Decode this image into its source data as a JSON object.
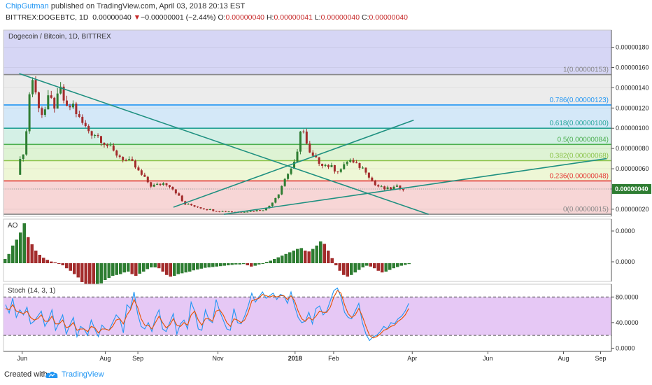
{
  "header": {
    "author": "ChipGutman",
    "published": "published on TradingView.com, April 03, 2018 20:13 EST",
    "symbol": "BITTREX:DOGEBTC, 1D",
    "last": "0.00000040",
    "arrow": "▼",
    "change": "−0.00000001 (−2.44%)",
    "o_label": "O:",
    "o_value": "0.00000040",
    "h_label": "H:",
    "h_value": "0.00000041",
    "l_label": "L:",
    "l_value": "0.00000040",
    "c_label": "C:",
    "c_value": "0.00000040"
  },
  "footer": {
    "created_with": "Created with",
    "brand": "TradingView"
  },
  "colors": {
    "up": "#2e7d32",
    "down": "#a32c2c",
    "fib_line_1": "#888888",
    "fib_786": "#2196f3",
    "fib_618": "#26a69a",
    "fib_5": "#4caf50",
    "fib_382": "#8bc34a",
    "fib_236": "#e53935",
    "fib_0": "#888888",
    "trendline": "#1e9080",
    "stoch_band": "#e6c8f5"
  },
  "chart_data": [
    {
      "type": "candlestick",
      "title": "Dogecoin / Bitcoin, 1D, BITTREX",
      "x_ticks": [
        "Jun",
        "Aug",
        "Sep",
        "Nov",
        "2018",
        "Feb",
        "Apr",
        "Jun",
        "Aug",
        "Sep"
      ],
      "y_ticks": [
        "0.00000020",
        "0.00000040",
        "0.00000060",
        "0.00000080",
        "0.00000100",
        "0.00000120",
        "0.00000140",
        "0.00000160",
        "0.00000180"
      ],
      "ylim": [
        1.3e-07,
        1.97e-06
      ],
      "last_price_label": "0.00000040",
      "fib_levels": [
        {
          "label": "1(0.00000153)",
          "value": 1.53e-06,
          "color": "#888888",
          "fill": "#ececec"
        },
        {
          "label": "0.786(0.00000123)",
          "value": 1.23e-06,
          "color": "#2196f3",
          "fill": "#d4e8f8"
        },
        {
          "label": "0.618(0.00000100)",
          "value": 1e-06,
          "color": "#26a69a",
          "fill": "#d4f0e6"
        },
        {
          "label": "0.5(0.00000084)",
          "value": 8.4e-07,
          "color": "#4caf50",
          "fill": "#def3d4"
        },
        {
          "label": "0.382(0.00000068)",
          "value": 6.8e-07,
          "color": "#8bc34a",
          "fill": "#eef7d6"
        },
        {
          "label": "0.236(0.00000048)",
          "value": 4.8e-07,
          "color": "#e53935",
          "fill": "#f7d6d6"
        },
        {
          "label": "0(0.00000015)",
          "value": 1.5e-07,
          "color": "#888888",
          "fill": "#ffffff"
        }
      ],
      "top_zone_fill": "#d6d6f5",
      "price_series": [
        [
          0.25,
          0.54
        ],
        [
          0.5,
          0.7
        ],
        [
          0.8,
          0.82
        ],
        [
          1.2,
          1.55
        ],
        [
          1.6,
          1.28
        ],
        [
          2.0,
          1.12
        ],
        [
          2.4,
          1.3
        ],
        [
          2.8,
          1.22
        ],
        [
          3.2,
          1.38
        ],
        [
          3.6,
          1.18
        ],
        [
          4.0,
          1.24
        ],
        [
          4.4,
          1.1
        ],
        [
          4.8,
          1.02
        ],
        [
          5.2,
          0.96
        ],
        [
          5.6,
          0.94
        ],
        [
          6.0,
          0.88
        ],
        [
          6.4,
          0.82
        ],
        [
          6.8,
          0.76
        ],
        [
          7.2,
          0.72
        ],
        [
          7.6,
          0.68
        ],
        [
          8.0,
          0.66
        ],
        [
          8.5,
          0.56
        ],
        [
          9.0,
          0.48
        ],
        [
          9.3,
          0.43
        ],
        [
          9.7,
          0.44
        ],
        [
          10.2,
          0.46
        ],
        [
          10.5,
          0.44
        ],
        [
          10.9,
          0.38
        ],
        [
          11.2,
          0.32
        ],
        [
          11.5,
          0.25
        ],
        [
          12.0,
          0.24
        ],
        [
          12.5,
          0.22
        ],
        [
          13.0,
          0.2
        ],
        [
          13.5,
          0.19
        ],
        [
          14.0,
          0.18
        ],
        [
          14.5,
          0.18
        ],
        [
          15.0,
          0.17
        ],
        [
          15.5,
          0.18
        ],
        [
          16.0,
          0.18
        ],
        [
          16.5,
          0.19
        ],
        [
          17.0,
          0.2
        ],
        [
          17.3,
          0.24
        ],
        [
          17.6,
          0.3
        ],
        [
          17.9,
          0.36
        ],
        [
          18.2,
          0.47
        ],
        [
          18.5,
          0.55
        ],
        [
          18.8,
          0.62
        ],
        [
          19.0,
          0.66
        ],
        [
          19.2,
          0.78
        ],
        [
          19.4,
          1.05
        ],
        [
          19.6,
          0.95
        ],
        [
          19.8,
          0.82
        ],
        [
          20.0,
          0.74
        ],
        [
          20.3,
          0.7
        ],
        [
          20.7,
          0.66
        ],
        [
          21.0,
          0.64
        ],
        [
          21.4,
          0.62
        ],
        [
          21.8,
          0.58
        ],
        [
          22.2,
          0.6
        ],
        [
          22.6,
          0.7
        ],
        [
          23.0,
          0.64
        ],
        [
          23.4,
          0.62
        ],
        [
          23.8,
          0.58
        ],
        [
          24.1,
          0.5
        ],
        [
          24.4,
          0.44
        ],
        [
          24.7,
          0.42
        ],
        [
          25.0,
          0.4
        ],
        [
          25.4,
          0.4
        ],
        [
          25.8,
          0.42
        ],
        [
          26.2,
          0.41
        ],
        [
          26.5,
          0.4
        ]
      ],
      "trendlines": [
        {
          "from": [
            0.4,
            1.54
          ],
          "to": [
            28.0,
            0.15
          ]
        },
        {
          "from": [
            14.2,
            0.15
          ],
          "to": [
            40.0,
            0.7
          ]
        },
        {
          "from": [
            10.8,
            0.22
          ],
          "to": [
            27.0,
            1.08
          ]
        }
      ]
    },
    {
      "type": "bar",
      "title": "AO",
      "y_ticks": [
        "0.0000",
        "0.0000"
      ],
      "values": [
        0.1,
        0.22,
        0.42,
        0.56,
        0.73,
        0.95,
        0.62,
        0.45,
        0.3,
        0.2,
        0.13,
        0.08,
        0.04,
        0.02,
        0.0,
        -0.05,
        -0.12,
        -0.18,
        -0.26,
        -0.34,
        -0.45,
        -0.55,
        -0.62,
        -0.66,
        -0.58,
        -0.48,
        -0.4,
        -0.35,
        -0.3,
        -0.28,
        -0.26,
        -0.22,
        -0.2,
        -0.26,
        -0.3,
        -0.25,
        -0.2,
        -0.14,
        -0.1,
        -0.1,
        -0.12,
        -0.2,
        -0.28,
        -0.32,
        -0.3,
        -0.26,
        -0.24,
        -0.22,
        -0.2,
        -0.17,
        -0.15,
        -0.13,
        -0.11,
        -0.1,
        -0.09,
        -0.08,
        -0.07,
        -0.06,
        -0.05,
        -0.04,
        -0.03,
        -0.03,
        -0.02,
        -0.05,
        -0.08,
        -0.06,
        -0.03,
        0.0,
        0.03,
        0.06,
        0.1,
        0.14,
        0.18,
        0.22,
        0.26,
        0.3,
        0.34,
        0.36,
        0.3,
        0.28,
        0.34,
        0.42,
        0.52,
        0.46,
        0.3,
        0.12,
        -0.05,
        -0.18,
        -0.28,
        -0.32,
        -0.28,
        -0.22,
        -0.16,
        -0.1,
        -0.06,
        -0.08,
        -0.12,
        -0.18,
        -0.22,
        -0.2,
        -0.16,
        -0.12,
        -0.09,
        -0.06,
        -0.04,
        -0.02
      ]
    },
    {
      "type": "line",
      "title": "Stoch (14, 3, 1)",
      "y_ticks": [
        "0.0000",
        "40.0000",
        "80.0000"
      ],
      "ylim": [
        -5,
        100
      ],
      "bands": [
        20,
        80
      ],
      "series": [
        {
          "values": [
            68,
            55,
            78,
            48,
            60,
            52,
            64,
            38,
            42,
            50,
            58,
            34,
            44,
            60,
            28,
            40,
            52,
            22,
            36,
            48,
            18,
            34,
            30,
            20,
            44,
            30,
            18,
            36,
            30,
            28,
            40,
            52,
            46,
            24,
            68,
            62,
            88,
            54,
            34,
            30,
            40,
            26,
            48,
            60,
            30,
            26,
            40,
            54,
            22,
            38,
            44,
            30,
            72,
            58,
            30,
            28,
            60,
            44,
            40,
            76,
            58,
            44,
            30,
            28,
            62,
            40,
            38,
            50,
            66,
            86,
            72,
            80,
            88,
            78,
            82,
            86,
            76,
            84,
            82,
            70,
            88,
            66,
            48,
            40,
            42,
            56,
            38,
            62,
            66,
            52,
            58,
            74,
            90,
            94,
            80,
            56,
            48,
            46,
            58,
            70,
            40,
            22,
            12,
            18,
            20,
            26,
            34,
            30,
            40,
            38,
            46,
            50,
            58,
            70
          ]
        },
        {
          "values": [
            62,
            60,
            68,
            58,
            56,
            54,
            58,
            48,
            44,
            46,
            52,
            42,
            42,
            50,
            38,
            38,
            44,
            32,
            34,
            40,
            28,
            30,
            30,
            26,
            34,
            32,
            24,
            30,
            30,
            28,
            34,
            44,
            46,
            38,
            52,
            60,
            76,
            64,
            46,
            36,
            36,
            30,
            40,
            50,
            40,
            32,
            36,
            46,
            36,
            34,
            40,
            36,
            52,
            58,
            44,
            36,
            46,
            46,
            42,
            58,
            60,
            52,
            40,
            34,
            46,
            44,
            40,
            44,
            56,
            74,
            76,
            78,
            84,
            82,
            80,
            82,
            80,
            82,
            82,
            76,
            82,
            74,
            58,
            46,
            42,
            48,
            44,
            50,
            58,
            56,
            56,
            64,
            80,
            90,
            86,
            68,
            54,
            48,
            52,
            62,
            50,
            34,
            20,
            16,
            18,
            22,
            28,
            30,
            34,
            36,
            42,
            46,
            52,
            62
          ]
        }
      ]
    }
  ]
}
